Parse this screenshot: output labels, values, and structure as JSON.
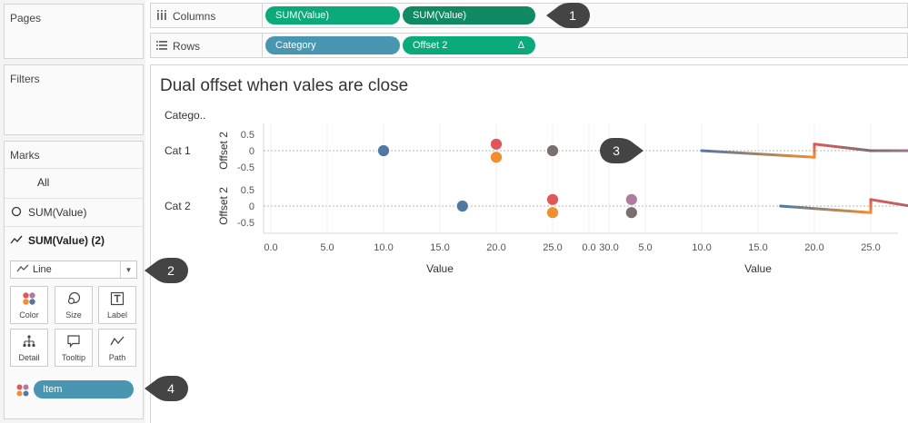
{
  "cards": {
    "pages_title": "Pages",
    "filters_title": "Filters",
    "marks_title": "Marks"
  },
  "marks": {
    "all_label": "All",
    "layers": [
      {
        "label": "SUM(Value)",
        "icon": "circle-mark-icon"
      },
      {
        "label": "SUM(Value) (2)",
        "icon": "line-mark-icon",
        "active": true
      }
    ],
    "mark_type": "Line",
    "encodings": [
      {
        "label": "Color",
        "icon": "color-dots-icon"
      },
      {
        "label": "Size",
        "icon": "size-icon"
      },
      {
        "label": "Label",
        "icon": "label-t-icon"
      },
      {
        "label": "Detail",
        "icon": "detail-tree-icon"
      },
      {
        "label": "Tooltip",
        "icon": "tooltip-bubble-icon"
      },
      {
        "label": "Path",
        "icon": "path-line-icon"
      }
    ],
    "item_pill": "Item"
  },
  "shelves": {
    "columns": {
      "label": "Columns",
      "pills": [
        {
          "label": "SUM(Value)",
          "color": "#0aaa7b"
        },
        {
          "label": "SUM(Value)",
          "color": "#0f8a62"
        }
      ]
    },
    "rows": {
      "label": "Rows",
      "pills": [
        {
          "label": "Category",
          "color": "#4996b2"
        },
        {
          "label": "Offset 2",
          "color": "#0aaa7b",
          "badge": "Δ"
        }
      ]
    }
  },
  "callouts": [
    "1",
    "2",
    "3",
    "4"
  ],
  "view": {
    "title": "Dual offset when vales are close",
    "category_header": "Catego..",
    "categories": [
      "Cat 1",
      "Cat 2"
    ]
  },
  "chart_data": {
    "type": "scatter",
    "title": "Dual offset when vales are close",
    "xlabel": "Value",
    "ylabel": "Offset 2",
    "x_ticks": [
      "0.0",
      "5.0",
      "10.0",
      "15.0",
      "20.0",
      "25.0",
      "30.0"
    ],
    "y_ticks": [
      "0.5",
      "0",
      "-0.5"
    ],
    "xlim": [
      -2,
      33
    ],
    "ylim": [
      -0.9,
      0.9
    ],
    "colors": {
      "blue": "#4e79a7",
      "red": "#e15759",
      "orange": "#f28e2b",
      "gray": "#79706e",
      "purple": "#b07aa1"
    },
    "panes": [
      {
        "category": "Cat 1",
        "points": [
          {
            "x": 10,
            "y": 0,
            "color": "blue"
          },
          {
            "x": 20,
            "y": 0.2,
            "color": "red"
          },
          {
            "x": 20,
            "y": -0.2,
            "color": "orange"
          },
          {
            "x": 25,
            "y": 0,
            "color": "gray"
          },
          {
            "x": 30,
            "y": 0,
            "color": "purple"
          }
        ],
        "line": [
          {
            "x": 10,
            "y": 0,
            "color": "blue"
          },
          {
            "x": 20,
            "y": -0.2,
            "color": "orange"
          },
          {
            "x": 20,
            "y": 0.2,
            "color": "red"
          },
          {
            "x": 25,
            "y": 0,
            "color": "gray"
          },
          {
            "x": 30,
            "y": 0,
            "color": "purple"
          }
        ]
      },
      {
        "category": "Cat 2",
        "points": [
          {
            "x": 17,
            "y": 0,
            "color": "blue"
          },
          {
            "x": 25,
            "y": 0.2,
            "color": "red"
          },
          {
            "x": 25,
            "y": -0.2,
            "color": "orange"
          },
          {
            "x": 32,
            "y": 0.2,
            "color": "purple"
          },
          {
            "x": 32,
            "y": -0.2,
            "color": "gray"
          }
        ],
        "line": [
          {
            "x": 17,
            "y": 0,
            "color": "blue"
          },
          {
            "x": 25,
            "y": -0.2,
            "color": "orange"
          },
          {
            "x": 25,
            "y": 0.2,
            "color": "red"
          },
          {
            "x": 32,
            "y": -0.2,
            "color": "gray"
          },
          {
            "x": 32,
            "y": 0.2,
            "color": "purple"
          }
        ]
      }
    ]
  }
}
